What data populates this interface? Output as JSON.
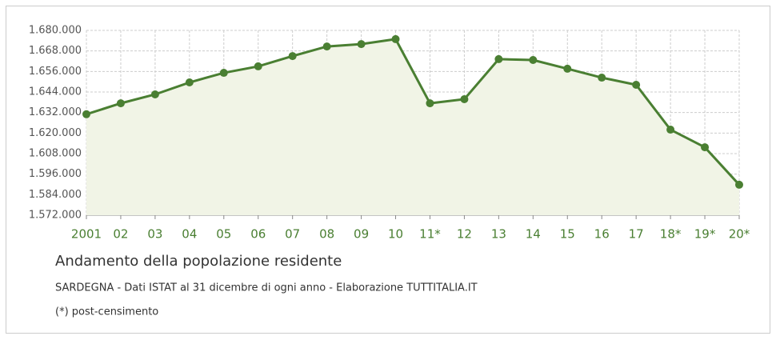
{
  "chart_data": {
    "type": "line",
    "title": "Andamento della popolazione residente",
    "subtitle": "SARDEGNA - Dati ISTAT al 31 dicembre di ogni anno - Elaborazione TUTTITALIA.IT",
    "note": "(*) post-censimento",
    "categories": [
      "2001",
      "02",
      "03",
      "04",
      "05",
      "06",
      "07",
      "08",
      "09",
      "10",
      "11*",
      "12",
      "13",
      "14",
      "15",
      "16",
      "17",
      "18*",
      "19*",
      "20*"
    ],
    "series": [
      {
        "name": "Popolazione residente",
        "color": "#4a7f32",
        "values": [
          1631000,
          1637400,
          1642600,
          1649600,
          1655200,
          1659000,
          1665000,
          1670600,
          1672000,
          1674900,
          1637400,
          1639800,
          1663200,
          1662700,
          1657600,
          1652400,
          1648200,
          1622000,
          1611700,
          1589800
        ]
      }
    ],
    "ylim": [
      1572000,
      1680000
    ],
    "yticks": [
      {
        "value": 1572000,
        "label": "1.572.000"
      },
      {
        "value": 1584000,
        "label": "1.584.000"
      },
      {
        "value": 1596000,
        "label": "1.596.000"
      },
      {
        "value": 1608000,
        "label": "1.608.000"
      },
      {
        "value": 1620000,
        "label": "1.620.000"
      },
      {
        "value": 1632000,
        "label": "1.632.000"
      },
      {
        "value": 1644000,
        "label": "1.644.000"
      },
      {
        "value": 1656000,
        "label": "1.656.000"
      },
      {
        "value": 1668000,
        "label": "1.668.000"
      },
      {
        "value": 1680000,
        "label": "1.680.000"
      }
    ],
    "grid": true,
    "area_color": "#f1f4e6"
  }
}
